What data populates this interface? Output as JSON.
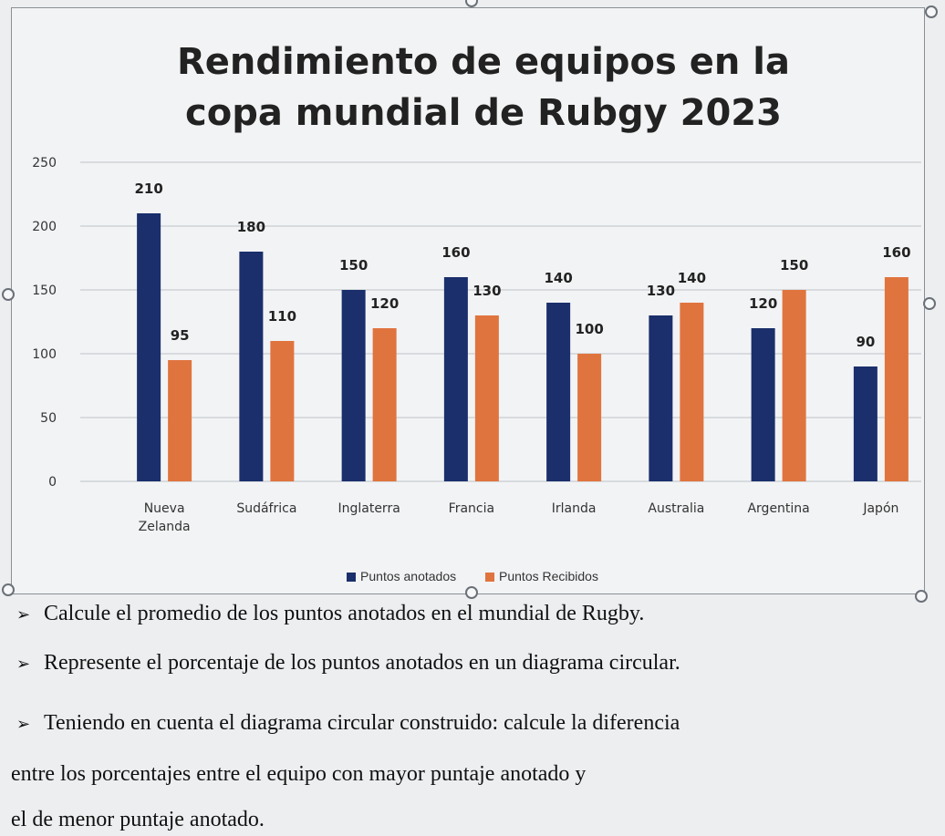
{
  "chart_data": {
    "type": "bar",
    "title": "Rendimiento de equipos en la copa mundial de Rubgy 2023",
    "categories": [
      "Nueva Zelanda",
      "Sudáfrica",
      "Inglaterra",
      "Francia",
      "Irlanda",
      "Australia",
      "Argentina",
      "Japón"
    ],
    "series": [
      {
        "name": "Puntos anotados",
        "color": "#1a2f6b",
        "values": [
          210,
          180,
          150,
          160,
          140,
          130,
          120,
          90
        ]
      },
      {
        "name": "Puntos Recibidos",
        "color": "#e0743e",
        "values": [
          95,
          110,
          120,
          130,
          100,
          140,
          150,
          160
        ]
      }
    ],
    "ylim": [
      0,
      250
    ],
    "yticks": [
      0,
      50,
      100,
      150,
      200,
      250
    ],
    "grid": true,
    "legend": "bottom"
  },
  "questions": [
    {
      "bullet": "➢",
      "text": "Calcule el promedio de los puntos anotados en el mundial de Rugby."
    },
    {
      "bullet": "➢",
      "text": "Represente el porcentaje de los puntos anotados en un diagrama circular."
    },
    {
      "bullet": "➢",
      "text": "Teniendo en cuenta el diagrama circular construido: calcule la diferencia"
    },
    {
      "bullet": "",
      "text": "entre los porcentajes entre el equipo con mayor puntaje anotado y"
    },
    {
      "bullet": "",
      "text": "el de menor puntaje anotado."
    }
  ]
}
